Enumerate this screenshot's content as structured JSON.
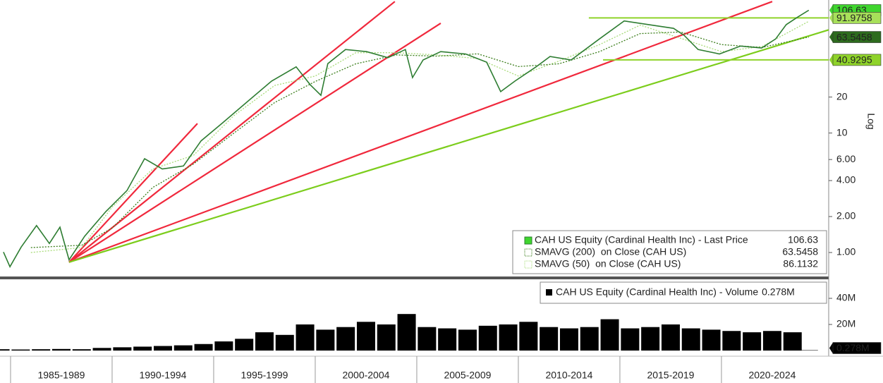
{
  "chart_data": [
    {
      "type": "line",
      "log_scale": true,
      "y_label": "Log",
      "xlim": [
        1984.48,
        2025.28
      ],
      "ylim": [
        0.63,
        129.8
      ],
      "yticks": [
        {
          "value": 1,
          "label": "1.00"
        },
        {
          "value": 2,
          "label": "2.00"
        },
        {
          "value": 4,
          "label": "4.00"
        },
        {
          "value": 6,
          "label": "6.00"
        },
        10,
        20
      ],
      "series": [
        {
          "name": "CAH US Equity (Cardinal Health Inc) - Last Price",
          "color": "#2e7d32",
          "flag_color": "#3fd62e",
          "x": [
            1984.65,
            1984.97,
            1985.52,
            1986.28,
            1986.91,
            1987.43,
            1987.88,
            1988.65,
            1989.69,
            1990.73,
            1991.6,
            1992.47,
            1993.51,
            1994.38,
            1995.42,
            1996.63,
            1997.85,
            1999.06,
            1999.76,
            2000.28,
            2000.62,
            2001.49,
            2002.53,
            2003.58,
            2004.44,
            2004.79,
            2005.31,
            2006.18,
            2007.4,
            2008.44,
            2009.13,
            2009.83,
            2010.87,
            2011.56,
            2012.6,
            2013.99,
            2015.21,
            2016.42,
            2017.64,
            2018.16,
            2018.85,
            2019.9,
            2020.94,
            2021.98,
            2022.67,
            2023.19,
            2023.72,
            2024.3
          ],
          "values": [
            1.01,
            0.76,
            1.11,
            1.68,
            1.19,
            1.63,
            0.87,
            1.37,
            2.2,
            3.3,
            6.1,
            5.0,
            5.3,
            8.6,
            12.1,
            18.1,
            27.2,
            35.8,
            25.3,
            20.7,
            38.1,
            50.0,
            48.0,
            42.7,
            50.0,
            29.1,
            40.9,
            48.0,
            45.9,
            39.2,
            22.2,
            27.2,
            35.8,
            43.7,
            40.9,
            61.3,
            86.7,
            80.8,
            75.2,
            65.7,
            50.0,
            45.9,
            53.4,
            51.5,
            61.3,
            80.8,
            92.7,
            106.63
          ]
        },
        {
          "name": "SMAVG (200)  on Close (CAH US)",
          "color": "#3a7d1a",
          "flag_color": "#2d6b1e",
          "x": [
            1986,
            1988.5,
            1990,
            1992,
            1994,
            1996,
            1998,
            2000,
            2002,
            2004,
            2006,
            2008,
            2010,
            2012,
            2014,
            2016,
            2018,
            2020,
            2022,
            2024.3
          ],
          "values": [
            1.1,
            1.15,
            1.6,
            3.5,
            5.5,
            10,
            18,
            27,
            38,
            45,
            44,
            46,
            36,
            38,
            48,
            68,
            70,
            55,
            52,
            63.5458
          ]
        },
        {
          "name": "SMAVG (50)  on Close (CAH US)",
          "color": "#a9dc7a",
          "x": [
            1986,
            1988.5,
            1990,
            1992,
            1994,
            1996,
            1998,
            2000,
            2002,
            2004,
            2006,
            2008,
            2010,
            2012,
            2014,
            2016,
            2018,
            2020,
            2022,
            2024.3
          ],
          "values": [
            1.0,
            1.1,
            2.4,
            5,
            6.5,
            14,
            25,
            30,
            47,
            47,
            45,
            42,
            30,
            40,
            55,
            80,
            62,
            48,
            53,
            86.1132
          ]
        }
      ],
      "levels": [
        {
          "value": 91.9758,
          "x_start": 2013.47,
          "color": "#8fd32a",
          "flag_color": "#a8e05a"
        },
        {
          "value": 40.9295,
          "x_start": 2014.17,
          "color": "#8fd32a",
          "flag_color": "#8fd32a"
        }
      ],
      "trendlines": [
        {
          "color": "#f0283c",
          "x": [
            1987.88,
            1994.2
          ],
          "y": [
            0.83,
            12.0
          ]
        },
        {
          "color": "#f0283c",
          "x": [
            1987.88,
            2003.92
          ],
          "y": [
            0.83,
            126
          ]
        },
        {
          "color": "#f0283c",
          "x": [
            1987.88,
            2006.18
          ],
          "y": [
            0.83,
            83
          ]
        },
        {
          "color": "#f0283c",
          "x": [
            1987.88,
            2022.5
          ],
          "y": [
            0.83,
            126
          ]
        },
        {
          "color": "#7ccd1c",
          "x": [
            1987.88,
            2025.28
          ],
          "y": [
            0.83,
            73
          ]
        }
      ]
    },
    {
      "type": "bar",
      "name": "CAH US Equity (Cardinal Health Inc) - Volume",
      "color": "#000000",
      "flag_color": "#000000",
      "xlim": [
        1984.48,
        2025.28
      ],
      "ylim": [
        0,
        53500000
      ],
      "yticks": [
        {
          "value": 40000000,
          "label": "40M"
        },
        {
          "value": 20000000,
          "label": "20M"
        }
      ],
      "xticks": [
        {
          "value": 1985,
          "label": "1985-1989"
        },
        {
          "value": 1990,
          "label": "1990-1994"
        },
        {
          "value": 1995,
          "label": "1995-1999"
        },
        {
          "value": 2000,
          "label": "2000-2004"
        },
        {
          "value": 2005,
          "label": "2005-2009"
        },
        {
          "value": 2010,
          "label": "2010-2014"
        },
        {
          "value": 2015,
          "label": "2015-2019"
        },
        {
          "value": 2020,
          "label": "2020-2024"
        }
      ],
      "x": [
        1984.5,
        1985.5,
        1986.5,
        1987.5,
        1988.5,
        1989.5,
        1990.5,
        1991.5,
        1992.5,
        1993.5,
        1994.5,
        1995.5,
        1996.5,
        1997.5,
        1998.5,
        1999.5,
        2000.5,
        2001.5,
        2002.5,
        2003.5,
        2004.5,
        2005.5,
        2006.5,
        2007.5,
        2008.5,
        2009.5,
        2010.5,
        2011.5,
        2012.5,
        2013.5,
        2014.5,
        2015.5,
        2016.5,
        2017.5,
        2018.5,
        2019.5,
        2020.5,
        2021.5,
        2022.5,
        2023.5,
        2024.3
      ],
      "values": [
        1000000,
        800000,
        1000000,
        1200000,
        1000000,
        2000000,
        2500000,
        3000000,
        3500000,
        4000000,
        5000000,
        7000000,
        9000000,
        14000000,
        12000000,
        20000000,
        16000000,
        18000000,
        22000000,
        20000000,
        28000000,
        18000000,
        17000000,
        16000000,
        19000000,
        20000000,
        22000000,
        18000000,
        17000000,
        18000000,
        24000000,
        17000000,
        18000000,
        20000000,
        17000000,
        16000000,
        15000000,
        14000000,
        15000000,
        14000000,
        278000
      ],
      "value_labels": [
        null,
        null,
        null,
        null,
        null,
        null,
        null,
        null,
        null,
        null,
        null,
        null,
        null,
        null,
        null,
        null,
        null,
        null,
        null,
        null,
        null,
        null,
        null,
        null,
        null,
        null,
        null,
        null,
        null,
        null,
        null,
        null,
        null,
        null,
        null,
        null,
        null,
        null,
        null,
        null,
        "0.278M"
      ]
    }
  ]
}
